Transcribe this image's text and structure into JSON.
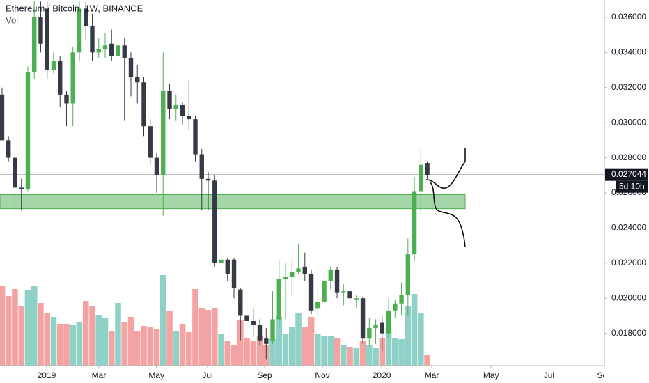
{
  "chart_data": {
    "type": "candlestick",
    "title": "Ethereum / Bitcoin, 1W, BINANCE",
    "volume_label": "Vol",
    "up_color": "#4caf50",
    "down_color": "#363a45",
    "volume_up_color": "#8fd1c6",
    "volume_down_color": "#f4a3a3",
    "open": [
      0.0316,
      0.029,
      0.028,
      0.0263,
      0.0262,
      0.0329,
      0.036,
      0.0365,
      0.033,
      0.0335,
      0.0316,
      0.0311,
      0.034,
      0.0365,
      0.0355,
      0.034,
      0.0342,
      0.0345,
      0.0338,
      0.0344,
      0.0337,
      0.0326,
      0.0323,
      0.0298,
      0.028,
      0.027,
      0.0318,
      0.0308,
      0.031,
      0.0304,
      0.0302,
      0.0282,
      0.0268,
      0.0267,
      0.022,
      0.0222,
      0.0222,
      0.0205,
      0.019,
      0.0187,
      0.0185,
      0.0177,
      0.0176,
      0.0188,
      0.0211,
      0.0212,
      0.0215,
      0.0218,
      0.0214,
      0.0194,
      0.0198,
      0.021,
      0.0216,
      0.0203,
      0.0204,
      0.0199,
      0.02,
      0.0177,
      0.0183,
      0.0186,
      0.018,
      0.0193,
      0.0197,
      0.0202,
      0.0225,
      0.0261,
      0.0277
    ],
    "high": [
      0.032,
      0.0292,
      0.0281,
      0.0268,
      0.0332,
      0.0369,
      0.0369,
      0.0369,
      0.034,
      0.0338,
      0.0318,
      0.0343,
      0.0369,
      0.0369,
      0.0362,
      0.0348,
      0.0351,
      0.0353,
      0.0352,
      0.0348,
      0.034,
      0.0333,
      0.0326,
      0.0302,
      0.0283,
      0.034,
      0.0322,
      0.0316,
      0.0312,
      0.0324,
      0.0304,
      0.0285,
      0.0272,
      0.027,
      0.0224,
      0.0223,
      0.0223,
      0.0206,
      0.02,
      0.0194,
      0.0188,
      0.0183,
      0.0204,
      0.0222,
      0.022,
      0.0222,
      0.0231,
      0.0226,
      0.0216,
      0.0205,
      0.0216,
      0.0218,
      0.0218,
      0.0208,
      0.0206,
      0.0202,
      0.0201,
      0.0189,
      0.0188,
      0.019,
      0.02,
      0.0199,
      0.0209,
      0.0234,
      0.0269,
      0.0285,
      0.0278
    ],
    "low": [
      0.029,
      0.0278,
      0.0247,
      0.025,
      0.0261,
      0.0325,
      0.034,
      0.0325,
      0.0328,
      0.0309,
      0.0298,
      0.0298,
      0.0335,
      0.0347,
      0.0335,
      0.0337,
      0.0337,
      0.0335,
      0.0332,
      0.0301,
      0.0315,
      0.0311,
      0.0292,
      0.0276,
      0.026,
      0.0247,
      0.0302,
      0.0301,
      0.0299,
      0.0296,
      0.0278,
      0.025,
      0.025,
      0.0218,
      0.0207,
      0.021,
      0.02,
      0.0176,
      0.0181,
      0.0178,
      0.0173,
      0.0165,
      0.0174,
      0.0183,
      0.0188,
      0.0201,
      0.0214,
      0.021,
      0.0191,
      0.019,
      0.0195,
      0.0205,
      0.02,
      0.0196,
      0.0195,
      0.0194,
      0.0174,
      0.0173,
      0.0174,
      0.017,
      0.0177,
      0.0189,
      0.019,
      0.019,
      0.0221,
      0.0248,
      0.0268
    ],
    "close": [
      0.029,
      0.028,
      0.0263,
      0.0262,
      0.0329,
      0.036,
      0.0345,
      0.033,
      0.0335,
      0.0316,
      0.0311,
      0.034,
      0.0365,
      0.0355,
      0.034,
      0.0342,
      0.0344,
      0.0338,
      0.0344,
      0.0337,
      0.0326,
      0.0323,
      0.0298,
      0.028,
      0.027,
      0.0318,
      0.0308,
      0.031,
      0.0304,
      0.0302,
      0.0282,
      0.0268,
      0.0267,
      0.022,
      0.0222,
      0.0214,
      0.0206,
      0.019,
      0.0187,
      0.0185,
      0.0176,
      0.0174,
      0.0188,
      0.0211,
      0.0212,
      0.0215,
      0.0217,
      0.0214,
      0.0193,
      0.0198,
      0.021,
      0.0216,
      0.0203,
      0.0204,
      0.02,
      0.02,
      0.0177,
      0.0183,
      0.0185,
      0.018,
      0.0193,
      0.0197,
      0.0202,
      0.0225,
      0.0261,
      0.0276,
      0.027
    ],
    "volume": [
      115,
      100,
      110,
      85,
      108,
      115,
      90,
      75,
      70,
      60,
      60,
      58,
      62,
      93,
      85,
      72,
      68,
      50,
      90,
      62,
      70,
      50,
      57,
      55,
      52,
      130,
      78,
      50,
      60,
      48,
      110,
      82,
      80,
      82,
      45,
      35,
      30,
      65,
      40,
      35,
      42,
      30,
      38,
      70,
      45,
      55,
      75,
      55,
      70,
      45,
      42,
      42,
      40,
      30,
      27,
      25,
      35,
      30,
      25,
      40,
      55,
      40,
      38,
      85,
      103,
      75,
      15
    ],
    "ylim": [
      0.01616,
      0.03699
    ],
    "yticks": [
      {
        "value": 0.018,
        "label": "0.018000"
      },
      {
        "value": 0.02,
        "label": "0.020000"
      },
      {
        "value": 0.022,
        "label": "0.022000"
      },
      {
        "value": 0.024,
        "label": "0.024000"
      },
      {
        "value": 0.026,
        "label": "0.026000"
      },
      {
        "value": 0.028,
        "label": "0.028000"
      },
      {
        "value": 0.03,
        "label": "0.030000"
      },
      {
        "value": 0.032,
        "label": "0.032000"
      },
      {
        "value": 0.034,
        "label": "0.034000"
      },
      {
        "value": 0.036,
        "label": "0.036000"
      }
    ],
    "xlim": [
      -0.32,
      93.5
    ],
    "xticks": [
      {
        "value": 6.92,
        "label": "2019"
      },
      {
        "value": 15.03,
        "label": "Mar"
      },
      {
        "value": 23.97,
        "label": "May"
      },
      {
        "value": 31.89,
        "label": "Jul"
      },
      {
        "value": 40.76,
        "label": "Sep"
      },
      {
        "value": 49.73,
        "label": "Nov"
      },
      {
        "value": 58.92,
        "label": "2020"
      },
      {
        "value": 66.7,
        "label": "Mar"
      },
      {
        "value": 75.9,
        "label": "May"
      },
      {
        "value": 84.9,
        "label": "Jul"
      },
      {
        "value": 93.5,
        "label": "Sep"
      }
    ],
    "grid": false,
    "zone": {
      "from": 0.0251,
      "to": 0.0259,
      "color": "#a5d6a7"
    },
    "last_price": {
      "value": 0.027044,
      "countdown": "5d 10h"
    }
  }
}
